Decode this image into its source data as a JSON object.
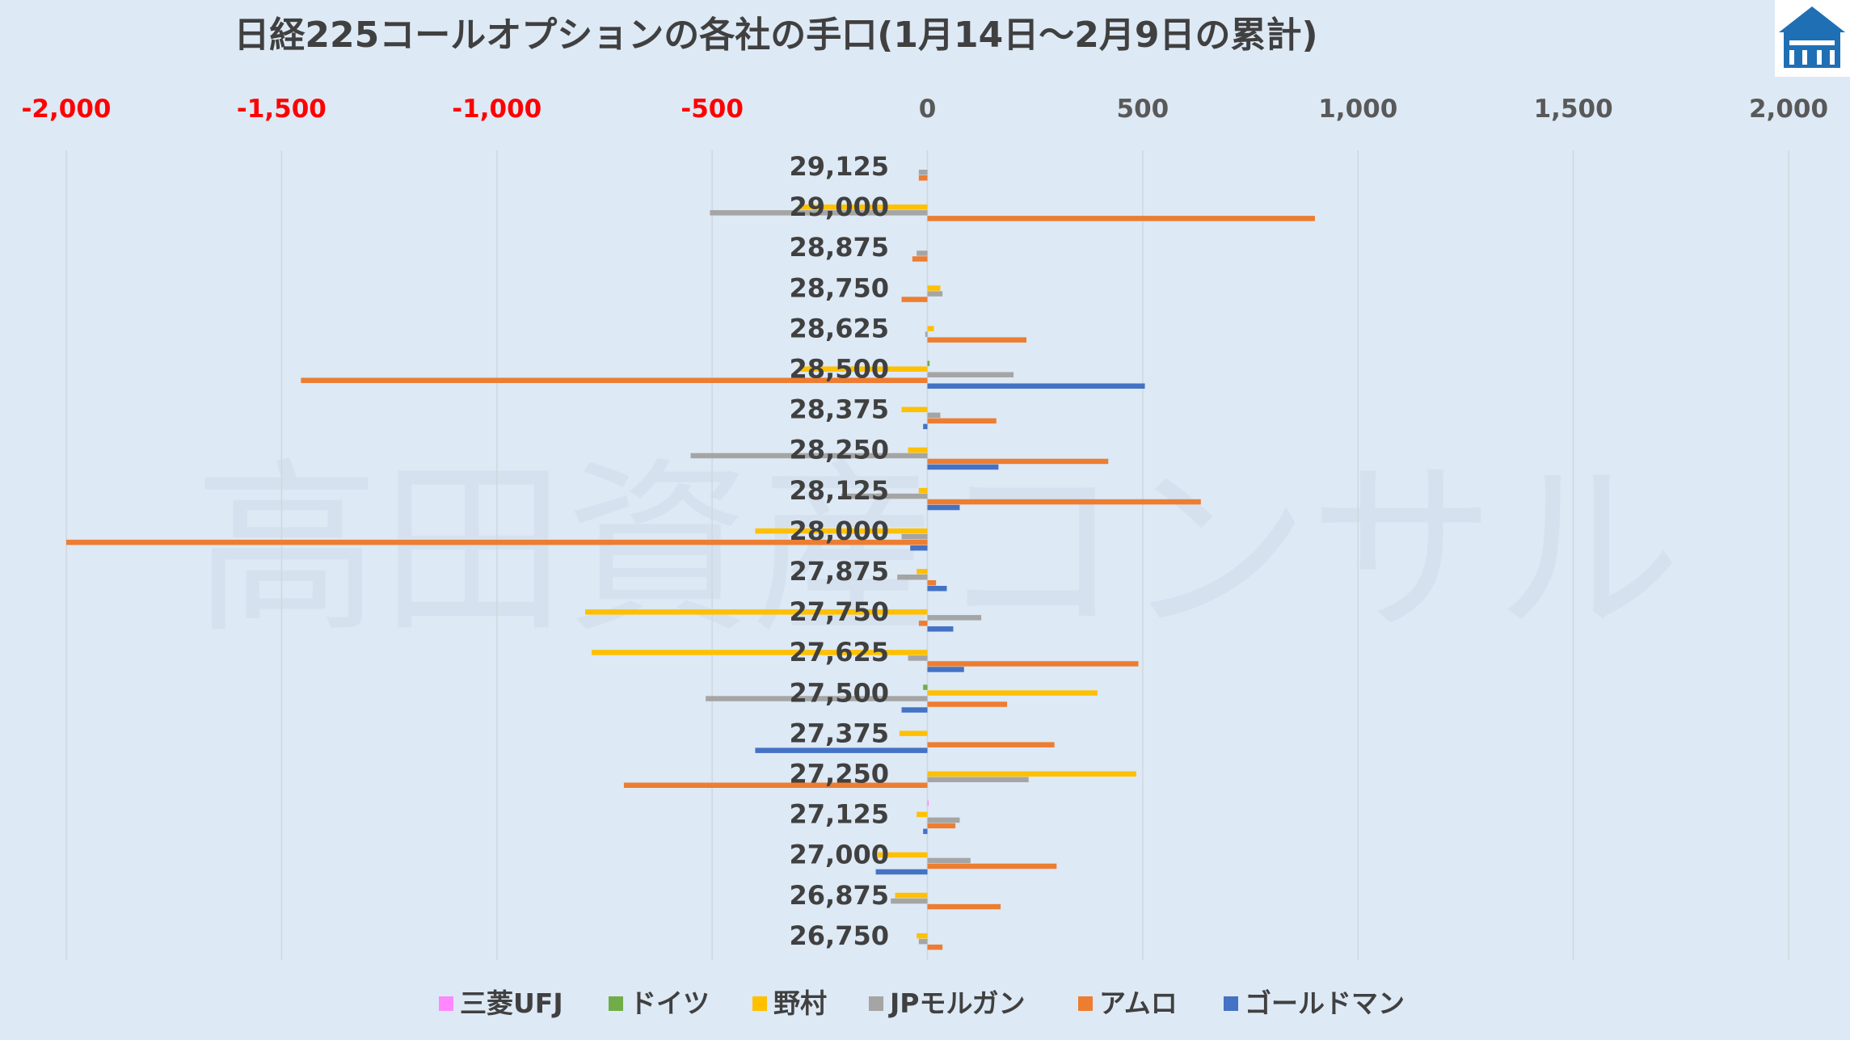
{
  "chart_data": {
    "type": "bar",
    "orientation": "horizontal",
    "title": "日経225コールオプションの各社の手口(1月14日～2月9日の累計)",
    "watermark": "高田資産コンサル",
    "xlim": [
      -2000,
      2000
    ],
    "x_ticks": [
      "-2,000",
      "-1,500",
      "-1,000",
      "-500",
      "0",
      "500",
      "1,000",
      "1,500",
      "2,000"
    ],
    "x_tick_values": [
      -2000,
      -1500,
      -1000,
      -500,
      0,
      500,
      1000,
      1500,
      2000
    ],
    "negative_tick_color": "#ff0000",
    "positive_tick_color": "#595959",
    "categories": [
      "29,125",
      "29,000",
      "28,875",
      "28,750",
      "28,625",
      "28,500",
      "28,375",
      "28,250",
      "28,125",
      "28,000",
      "27,875",
      "27,750",
      "27,625",
      "27,500",
      "27,375",
      "27,250",
      "27,125",
      "27,000",
      "26,875",
      "26,750"
    ],
    "series": [
      {
        "name": "三菱UFJ",
        "color": "#ff88ff",
        "values": [
          0,
          0,
          0,
          0,
          0,
          0,
          0,
          0,
          0,
          0,
          0,
          0,
          0,
          0,
          0,
          0,
          3,
          0,
          0,
          0
        ]
      },
      {
        "name": "ドイツ",
        "color": "#70ad47",
        "values": [
          0,
          0,
          0,
          0,
          0,
          5,
          0,
          0,
          0,
          0,
          0,
          0,
          0,
          -10,
          0,
          0,
          0,
          0,
          0,
          0
        ]
      },
      {
        "name": "野村",
        "color": "#ffc000",
        "values": [
          0,
          -300,
          0,
          30,
          15,
          -300,
          -60,
          -45,
          -20,
          -400,
          -25,
          -795,
          -780,
          395,
          -65,
          485,
          -25,
          -115,
          -75,
          -25
        ]
      },
      {
        "name": "JPモルガン",
        "color": "#a5a5a5",
        "values": [
          -20,
          -505,
          -25,
          35,
          -5,
          200,
          30,
          -550,
          -200,
          -60,
          -70,
          125,
          -45,
          -515,
          0,
          235,
          75,
          100,
          -85,
          -20
        ]
      },
      {
        "name": "アムロ",
        "color": "#ed7d31",
        "values": [
          -20,
          900,
          -35,
          -60,
          230,
          -1455,
          160,
          420,
          635,
          -2000,
          20,
          -20,
          490,
          185,
          295,
          -705,
          65,
          300,
          170,
          35
        ]
      },
      {
        "name": "ゴールドマン",
        "color": "#4472c4",
        "values": [
          0,
          0,
          0,
          0,
          0,
          505,
          -10,
          165,
          75,
          -40,
          45,
          60,
          85,
          -60,
          -400,
          0,
          -10,
          -120,
          0,
          0
        ]
      }
    ]
  }
}
